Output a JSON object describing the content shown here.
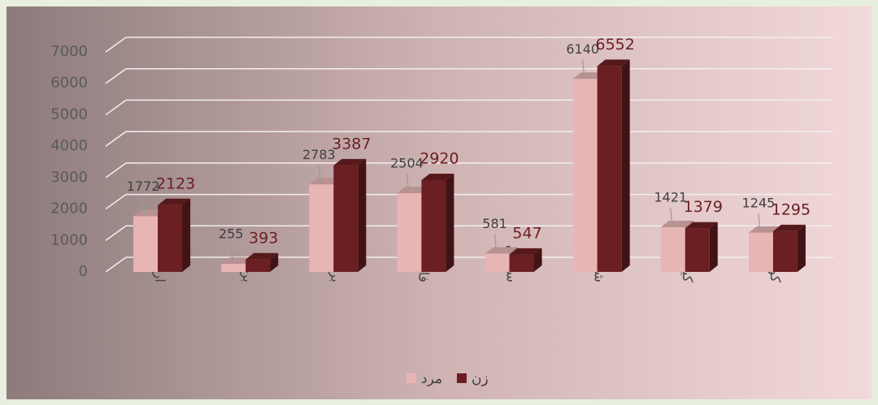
{
  "chart_data": {
    "type": "bar",
    "categories": [
      "اردل",
      "بن",
      "بروجن",
      "فارسان",
      "سامان",
      "شهرکرد",
      "کیار",
      "کوهرنگ"
    ],
    "series": [
      {
        "name": "مرد",
        "color": "#e8b5b5",
        "values": [
          1772,
          255,
          2783,
          2504,
          581,
          6140,
          1421,
          1245
        ]
      },
      {
        "name": "زن",
        "color": "#6b1f22",
        "values": [
          2123,
          393,
          3387,
          2920,
          547,
          6552,
          1379,
          1295
        ]
      }
    ],
    "ylim": [
      0,
      7000
    ],
    "yticks": [
      0,
      1000,
      2000,
      3000,
      4000,
      5000,
      6000,
      7000
    ],
    "grid": true,
    "legend": "bottom"
  }
}
